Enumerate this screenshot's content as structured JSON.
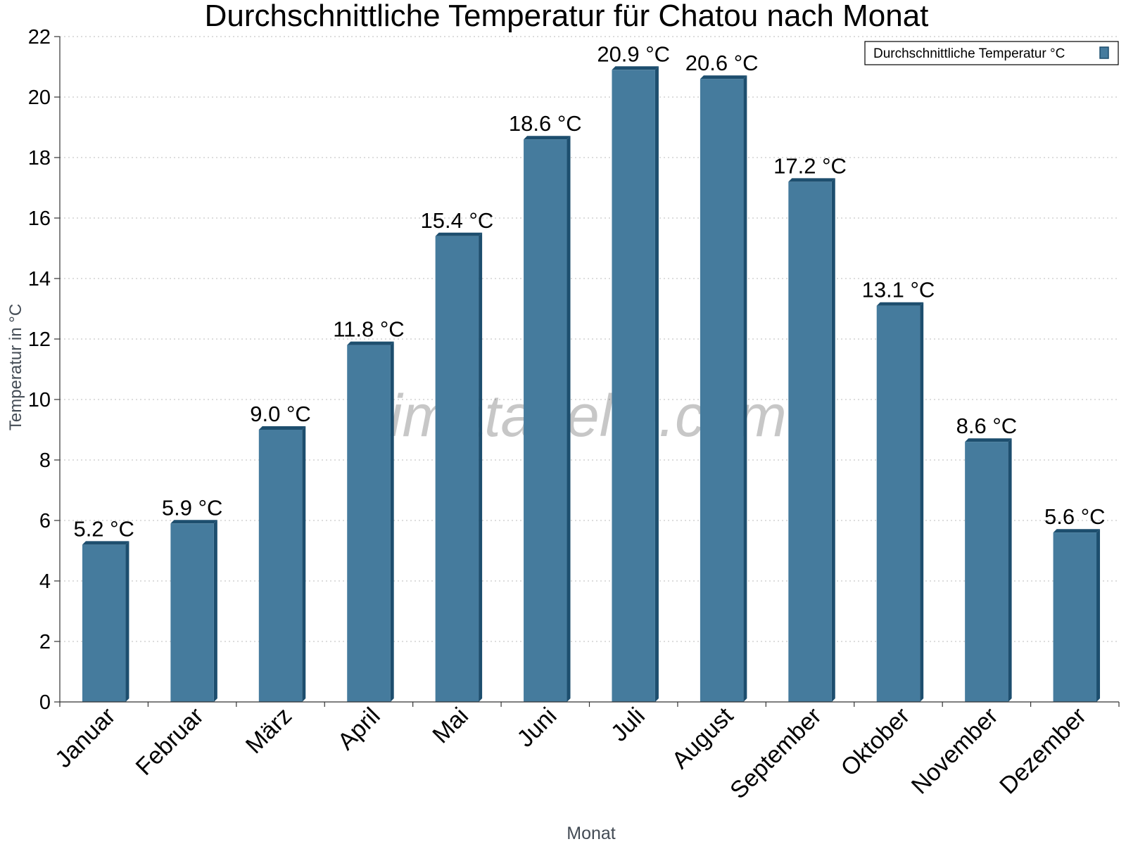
{
  "chart_data": {
    "type": "bar",
    "title": "Durchschnittliche Temperatur für Chatou nach Monat",
    "xlabel": "Monat",
    "ylabel": "Temperatur in °C",
    "categories": [
      "Januar",
      "Februar",
      "März",
      "April",
      "Mai",
      "Juni",
      "Juli",
      "August",
      "September",
      "Oktober",
      "November",
      "Dezember"
    ],
    "series": [
      {
        "name": "Durchschnittliche Temperatur °C",
        "values": [
          5.2,
          5.9,
          9.0,
          11.8,
          15.4,
          18.6,
          20.9,
          20.6,
          17.2,
          13.1,
          8.6,
          5.6
        ],
        "labels": [
          "5.2 °C",
          "5.9 °C",
          "9.0 °C",
          "11.8 °C",
          "15.4 °C",
          "18.6 °C",
          "20.9 °C",
          "20.6 °C",
          "17.2 °C",
          "13.1 °C",
          "8.6 °C",
          "5.6 °C"
        ]
      }
    ],
    "ylim": [
      0,
      22
    ],
    "yticks": [
      "0",
      "2",
      "4",
      "6",
      "8",
      "10",
      "12",
      "14",
      "16",
      "18",
      "20",
      "22"
    ],
    "grid": true,
    "legend_position": "top-right",
    "colors": {
      "bar": "#457b9d",
      "bar_side": "#1d4e6e",
      "grid": "#bbbbbb",
      "axis": "#333333",
      "axis_label": "#444c55"
    }
  },
  "watermark": "klimatabelle.com"
}
